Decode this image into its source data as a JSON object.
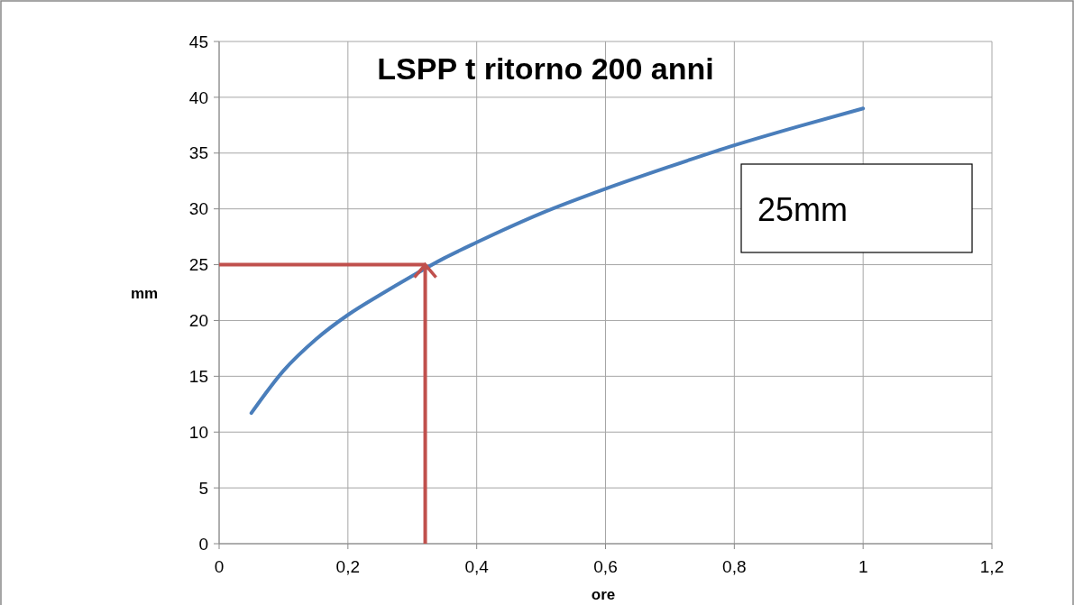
{
  "chart_data": {
    "type": "line",
    "title": "LSPP t ritorno 200 anni",
    "xlabel": "ore",
    "ylabel": "mm",
    "x": [
      0.05,
      0.1,
      0.15,
      0.2,
      0.25,
      0.3,
      0.35,
      0.4,
      0.5,
      0.6,
      0.7,
      0.8,
      0.9,
      1.0
    ],
    "series": [
      {
        "color": "#4a7ebb",
        "values": [
          11.7,
          15.5,
          18.3,
          20.5,
          22.3,
          24.0,
          25.6,
          27.0,
          29.6,
          31.8,
          33.8,
          35.7,
          37.4,
          39.0
        ]
      }
    ],
    "xlim": [
      0,
      1.2
    ],
    "xticks": [
      {
        "value": 0,
        "label": "0"
      },
      {
        "value": 0.2,
        "label": "0,2"
      },
      {
        "value": 0.4,
        "label": "0,4"
      },
      {
        "value": 0.6,
        "label": "0,6"
      },
      {
        "value": 0.8,
        "label": "0,8"
      },
      {
        "value": 1,
        "label": "1"
      },
      {
        "value": 1.2,
        "label": "1,2"
      }
    ],
    "ylim": [
      0,
      45
    ],
    "yticks": [
      0,
      5,
      10,
      15,
      20,
      25,
      30,
      35,
      40,
      45
    ],
    "grid": true,
    "marker": "none",
    "line_style": "solid",
    "ref_lines": [
      {
        "axis": "y",
        "value": 25,
        "color": "#c0504d"
      },
      {
        "axis": "x",
        "value": 0.32,
        "color": "#c0504d"
      }
    ],
    "annotations": [
      "25mm"
    ]
  }
}
